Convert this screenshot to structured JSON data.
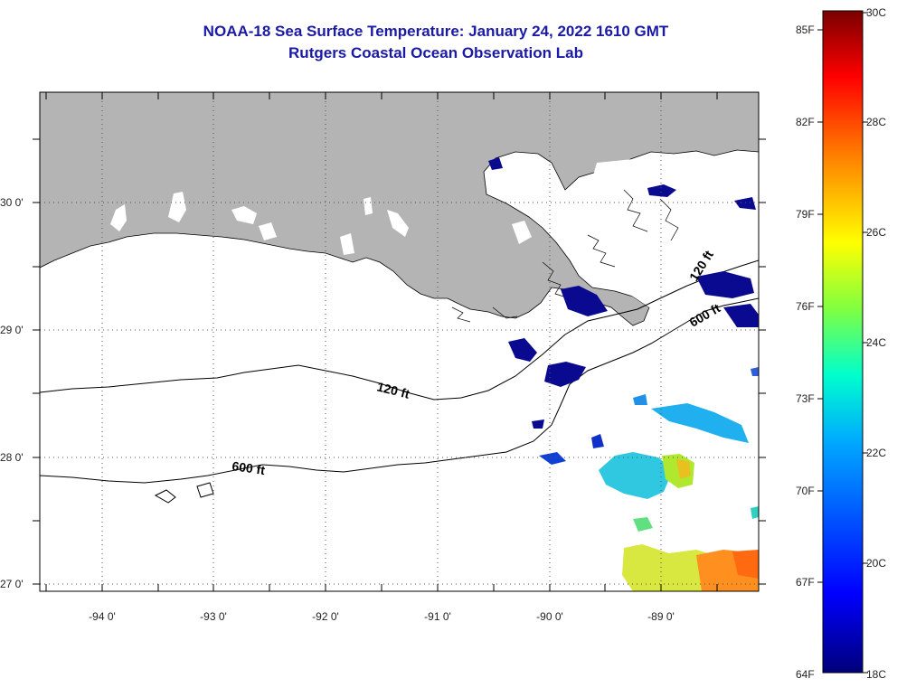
{
  "header": {
    "title": "NOAA-18 Sea Surface Temperature:  January 24, 2022 1610 GMT",
    "subtitle": "Rutgers Coastal Ocean Observation Lab"
  },
  "map": {
    "lat_labels": [
      "30 0'",
      "29 0'",
      "28 0'",
      "27 0'"
    ],
    "lon_labels": [
      "-94 0'",
      "-93 0'",
      "-92 0'",
      "-91 0'",
      "-90 0'",
      "-89 0'"
    ],
    "contours": [
      "120 ft",
      "600 ft",
      "120 ft",
      "600 ft"
    ]
  },
  "colorbar": {
    "fahrenheit": [
      "85F",
      "82F",
      "79F",
      "76F",
      "73F",
      "70F",
      "67F",
      "64F"
    ],
    "celsius": [
      "30C",
      "28C",
      "26C",
      "24C",
      "22C",
      "20C",
      "18C"
    ]
  },
  "colors": {
    "land": "#b4b4b4",
    "title": "#1a1aa6",
    "sst_min": "#00007a",
    "sst_max": "#7a0000"
  }
}
